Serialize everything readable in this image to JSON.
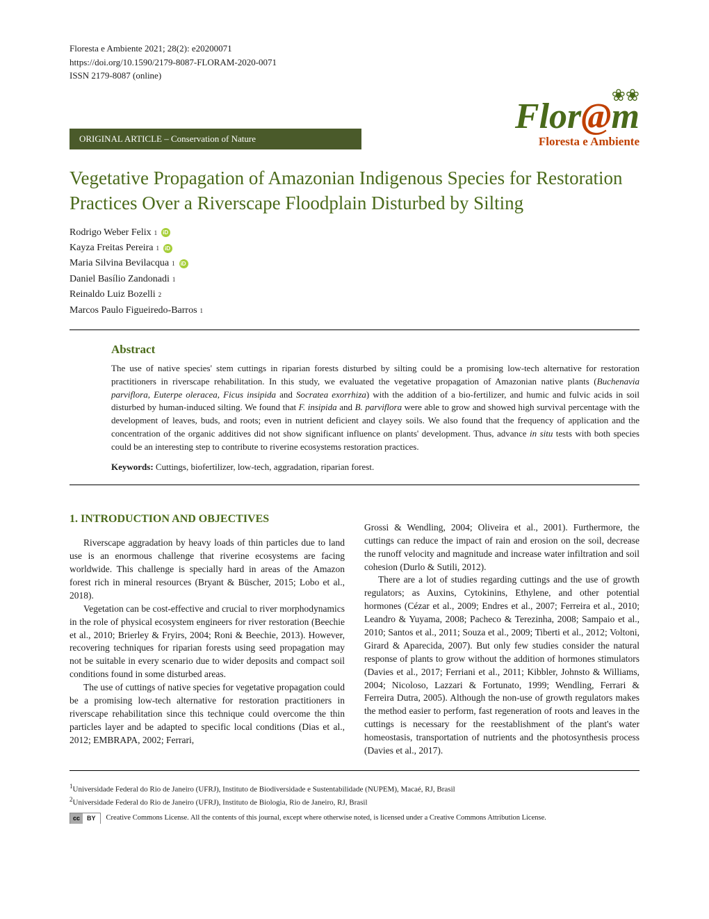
{
  "meta": {
    "citation": "Floresta e Ambiente 2021; 28(2): e20200071",
    "doi": "https://doi.org/10.1590/2179-8087-FLORAM-2020-0071",
    "issn": "ISSN 2179-8087 (online)"
  },
  "articleType": "ORIGINAL ARTICLE – Conservation of Nature",
  "logo": {
    "word_pre": "Flor",
    "word_at": "@",
    "word_post": "m",
    "subtitle": "Floresta e Ambiente"
  },
  "title": "Vegetative Propagation of Amazonian Indigenous Species for Restoration Practices Over a Riverscape Floodplain Disturbed by Silting",
  "authors": [
    {
      "name": "Rodrigo Weber Felix",
      "affil": "1",
      "orcid": true
    },
    {
      "name": "Kayza Freitas Pereira",
      "affil": "1",
      "orcid": true
    },
    {
      "name": "Maria Silvina Bevilacqua",
      "affil": "1",
      "orcid": true
    },
    {
      "name": "Daniel Basílio Zandonadi",
      "affil": "1",
      "orcid": false
    },
    {
      "name": "Reinaldo Luiz Bozelli",
      "affil": "2",
      "orcid": false
    },
    {
      "name": "Marcos Paulo Figueiredo-Barros",
      "affil": "1",
      "orcid": false
    }
  ],
  "abstract": {
    "heading": "Abstract",
    "text_pre": "The use of native species' stem cuttings in riparian forests disturbed by silting could be a promising low-tech alternative for restoration practitioners in riverscape rehabilitation. In this study, we evaluated the vegetative propagation of Amazonian native plants (",
    "species1": "Buchenavia parviflora, Euterpe oleracea, Ficus insipida",
    "text_mid1": " and ",
    "species2": "Socratea exorrhiza",
    "text_mid2": ") with the addition of a bio-fertilizer, and humic and fulvic acids in soil disturbed by human-induced silting. We found that ",
    "species3": "F. insipida",
    "text_mid3": " and ",
    "species4": "B. parviflora",
    "text_post": " were able to grow and showed high survival percentage with the development of leaves, buds, and roots; even in nutrient deficient and clayey soils. We also found that the frequency of application and the concentration of the organic additives did not show significant influence on plants' development. Thus, advance ",
    "italic_end": "in situ",
    "text_final": " tests with both species could be an interesting step to contribute to riverine ecosystems restoration practices."
  },
  "keywords": {
    "label": "Keywords:",
    "text": " Cuttings, biofertilizer, low-tech, aggradation, riparian forest."
  },
  "section1": {
    "heading": "1. INTRODUCTION AND OBJECTIVES",
    "col1": {
      "p1": "Riverscape aggradation by heavy loads of thin particles due to land use is an enormous challenge that riverine ecosystems are facing worldwide. This challenge is specially hard in areas of the Amazon forest rich in mineral resources (Bryant & Büscher, 2015; Lobo et al., 2018).",
      "p2": "Vegetation can be cost-effective and crucial to river morphodynamics in the role of physical ecosystem engineers for river restoration (Beechie et al., 2010; Brierley & Fryirs, 2004; Roni & Beechie, 2013). However, recovering techniques for riparian forests using seed propagation may not be suitable in every scenario due to wider deposits and compact soil conditions found in some disturbed areas.",
      "p3": "The use of cuttings of native species for vegetative propagation could be a promising low-tech alternative for restoration practitioners in riverscape rehabilitation since this technique could overcome the thin particles layer and be adapted to specific local conditions (Dias et al., 2012; EMBRAPA, 2002; Ferrari,"
    },
    "col2": {
      "p1": "Grossi & Wendling, 2004; Oliveira et al., 2001). Furthermore, the cuttings can reduce the impact of rain and erosion on the soil, decrease the runoff velocity and magnitude and increase water infiltration and soil cohesion (Durlo & Sutili, 2012).",
      "p2": "There are a lot of studies regarding cuttings and the use of growth regulators; as Auxins, Cytokinins, Ethylene, and other potential hormones (Cézar et al., 2009; Endres et al., 2007; Ferreira et al., 2010; Leandro & Yuyama, 2008; Pacheco & Terezinha, 2008; Sampaio et al., 2010; Santos et al., 2011; Souza et al., 2009; Tiberti et al., 2012; Voltoni, Girard & Aparecida, 2007). But only few studies consider the natural response of plants to grow without the addition of hormones stimulators (Davies et al., 2017; Ferriani et al., 2011; Kibbler, Johnsto & Williams, 2004; Nicoloso, Lazzari & Fortunato, 1999; Wendling, Ferrari & Ferreira Dutra, 2005). Although the non-use of growth regulators makes the method easier to perform, fast regeneration of roots and leaves in the cuttings is necessary for the reestablishment of the plant's water homeostasis, transportation of nutrients and the photosynthesis process (Davies et al., 2017)."
    }
  },
  "affiliations": {
    "a1": "Universidade Federal do Rio de Janeiro (UFRJ), Instituto de Biodiversidade e Sustentabilidade (NUPEM), Macaé, RJ, Brasil",
    "a2": "Universidade Federal do Rio de Janeiro (UFRJ), Instituto de Biologia, Rio de Janeiro, RJ, Brasil"
  },
  "cc": {
    "text": "Creative Commons License. All the contents of this journal, except where otherwise noted, is licensed under a Creative Commons Attribution License."
  },
  "colors": {
    "brand_green": "#4a6a1a",
    "band_green": "#4a5a2a",
    "brand_orange": "#c04000",
    "orcid_green": "#a6ce39"
  }
}
